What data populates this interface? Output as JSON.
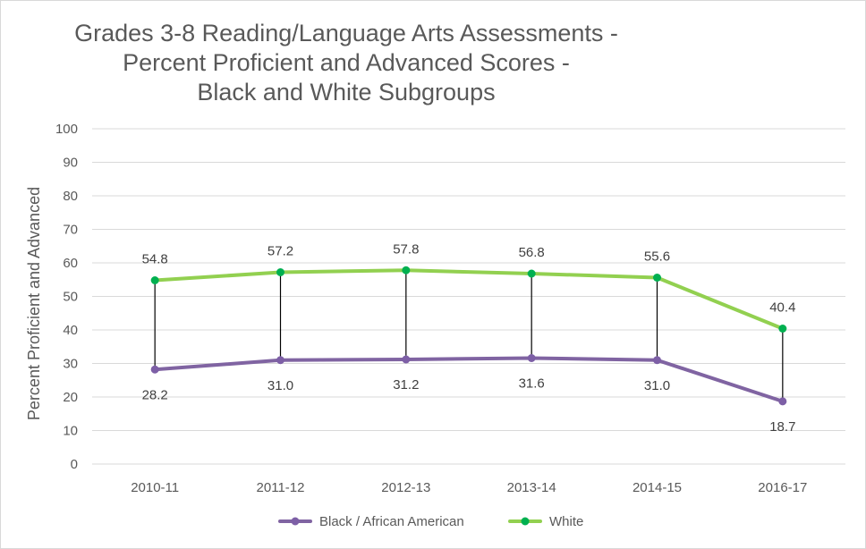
{
  "chart_data": {
    "type": "line",
    "title_lines": [
      "Grades 3-8 Reading/Language Arts Assessments -",
      "Percent Proficient and Advanced Scores -",
      "Black and White Subgroups"
    ],
    "xlabel": "",
    "ylabel": "Percent Proficient and Advanced",
    "categories": [
      "2010-11",
      "2011-12",
      "2012-13",
      "2013-14",
      "2014-15",
      "2016-17"
    ],
    "ylim": [
      0,
      100
    ],
    "yticks": [
      "0",
      "10",
      "20",
      "30",
      "40",
      "50",
      "60",
      "70",
      "80",
      "90",
      "100"
    ],
    "grid": true,
    "legend_position": "bottom",
    "hi_lo_lines": true,
    "series": [
      {
        "name": "Black / African American",
        "color": "#8064a2",
        "marker_color": "#7d5fa6",
        "values": [
          28.2,
          31.0,
          31.2,
          31.6,
          31.0,
          18.7
        ],
        "labels": [
          "28.2",
          "31.0",
          "31.2",
          "31.6",
          "31.0",
          "18.7"
        ]
      },
      {
        "name": "White",
        "color": "#92d050",
        "marker_color": "#00b050",
        "values": [
          54.8,
          57.2,
          57.8,
          56.8,
          55.6,
          40.4
        ],
        "labels": [
          "54.8",
          "57.2",
          "57.8",
          "56.8",
          "55.6",
          "40.4"
        ]
      }
    ]
  }
}
